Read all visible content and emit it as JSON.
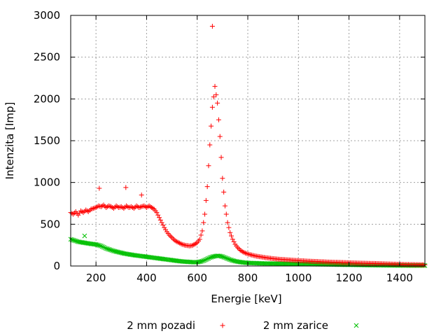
{
  "chart_data": {
    "type": "scatter",
    "title": "",
    "xlabel": "Energie [keV]",
    "ylabel": "Intenzita [Imp]",
    "xlim": [
      100,
      1500
    ],
    "ylim": [
      0,
      3000
    ],
    "xticks": [
      200,
      400,
      600,
      800,
      1000,
      1200,
      1400
    ],
    "yticks": [
      0,
      500,
      1000,
      1500,
      2000,
      2500,
      3000
    ],
    "grid": true,
    "legend_position": "bottom",
    "series": [
      {
        "name": "2 mm pozadi",
        "marker": "plus",
        "color": "#ff0000",
        "x": [
          100,
          110,
          120,
          130,
          140,
          150,
          160,
          170,
          180,
          190,
          200,
          210,
          220,
          230,
          240,
          250,
          260,
          270,
          280,
          290,
          300,
          310,
          320,
          330,
          340,
          350,
          360,
          370,
          380,
          390,
          400,
          410,
          420,
          430,
          440,
          450,
          460,
          470,
          480,
          490,
          500,
          510,
          520,
          530,
          540,
          550,
          560,
          570,
          580,
          590,
          600,
          610,
          620,
          630,
          640,
          650,
          660,
          670,
          680,
          690,
          700,
          710,
          720,
          730,
          740,
          750,
          760,
          770,
          780,
          790,
          800,
          810,
          820,
          830,
          840,
          850,
          860,
          870,
          880,
          890,
          900,
          910,
          920,
          930,
          940,
          950,
          960,
          970,
          980,
          990,
          1000,
          1010,
          1020,
          1030,
          1040,
          1050,
          1060,
          1070,
          1080,
          1090,
          1100,
          1110,
          1120,
          1130,
          1140,
          1150,
          1160,
          1170,
          1180,
          1190,
          1200,
          1210,
          1220,
          1230,
          1240,
          1250,
          1260,
          1270,
          1280,
          1290,
          1300,
          1310,
          1320,
          1330,
          1340,
          1350,
          1360,
          1370,
          1380,
          1390,
          1400,
          1410,
          1420,
          1430,
          1440,
          1450,
          1460,
          1470,
          1480,
          1490,
          1500,
          660,
          213,
          318,
          380
        ],
        "y": [
          640,
          620,
          650,
          610,
          660,
          640,
          670,
          650,
          680,
          690,
          700,
          720,
          710,
          730,
          700,
          720,
          710,
          690,
          720,
          700,
          710,
          690,
          720,
          700,
          710,
          690,
          720,
          700,
          710,
          720,
          700,
          720,
          700,
          680,
          640,
          580,
          520,
          460,
          410,
          370,
          340,
          310,
          290,
          275,
          260,
          250,
          245,
          240,
          245,
          260,
          280,
          320,
          420,
          620,
          950,
          1450,
          1900,
          2150,
          1950,
          1550,
          1050,
          720,
          520,
          400,
          320,
          260,
          220,
          190,
          170,
          155,
          145,
          135,
          128,
          120,
          115,
          110,
          105,
          100,
          96,
          92,
          88,
          85,
          82,
          80,
          78,
          75,
          73,
          71,
          69,
          67,
          65,
          63,
          62,
          60,
          58,
          57,
          55,
          54,
          52,
          51,
          50,
          48,
          47,
          46,
          45,
          44,
          43,
          42,
          41,
          40,
          39,
          38,
          37,
          36,
          35,
          34,
          33,
          32,
          31,
          30,
          30,
          29,
          28,
          27,
          26,
          25,
          24,
          23,
          22,
          21,
          20,
          19,
          18,
          18,
          17,
          17,
          16,
          16,
          15,
          15,
          15,
          2870,
          930,
          940,
          850
        ]
      },
      {
        "name": "2 mm zarice",
        "marker": "cross",
        "color": "#00c000",
        "x": [
          100,
          110,
          120,
          130,
          140,
          150,
          160,
          170,
          180,
          190,
          200,
          210,
          220,
          230,
          240,
          250,
          260,
          270,
          280,
          290,
          300,
          310,
          320,
          330,
          340,
          350,
          360,
          370,
          380,
          390,
          400,
          410,
          420,
          430,
          440,
          450,
          460,
          470,
          480,
          490,
          500,
          510,
          520,
          530,
          540,
          550,
          560,
          570,
          580,
          590,
          600,
          610,
          620,
          630,
          640,
          650,
          660,
          670,
          680,
          690,
          700,
          710,
          720,
          730,
          740,
          750,
          760,
          770,
          780,
          790,
          800,
          810,
          820,
          830,
          840,
          850,
          860,
          870,
          880,
          890,
          900,
          910,
          920,
          930,
          940,
          950,
          960,
          970,
          980,
          990,
          1000,
          1010,
          1020,
          1030,
          1040,
          1050,
          1060,
          1070,
          1080,
          1090,
          1100,
          1110,
          1120,
          1130,
          1140,
          1150,
          1160,
          1170,
          1180,
          1190,
          1200,
          1210,
          1220,
          1230,
          1240,
          1250,
          1260,
          1270,
          1280,
          1290,
          1300,
          1310,
          1320,
          1330,
          1340,
          1350,
          1360,
          1370,
          1380,
          1390,
          1400,
          1410,
          1420,
          1430,
          1440,
          1450,
          1460,
          1470,
          1480,
          1490,
          1500,
          155
        ],
        "y": [
          320,
          310,
          300,
          290,
          285,
          280,
          275,
          270,
          265,
          262,
          258,
          250,
          240,
          225,
          210,
          200,
          190,
          180,
          172,
          165,
          158,
          150,
          145,
          140,
          135,
          130,
          126,
          122,
          118,
          114,
          110,
          106,
          102,
          98,
          94,
          90,
          86,
          82,
          78,
          74,
          70,
          66,
          62,
          58,
          55,
          52,
          50,
          48,
          46,
          45,
          46,
          50,
          58,
          70,
          85,
          100,
          110,
          118,
          122,
          120,
          112,
          100,
          88,
          76,
          66,
          58,
          52,
          47,
          43,
          40,
          38,
          36,
          35,
          34,
          33,
          32,
          31,
          30,
          30,
          29,
          29,
          28,
          28,
          27,
          27,
          26,
          26,
          25,
          25,
          25,
          24,
          24,
          23,
          23,
          22,
          22,
          21,
          21,
          20,
          20,
          19,
          19,
          18,
          18,
          17,
          17,
          16,
          16,
          15,
          15,
          14,
          14,
          13,
          13,
          12,
          12,
          11,
          11,
          10,
          10,
          10,
          9,
          9,
          9,
          8,
          8,
          8,
          7,
          7,
          7,
          6,
          6,
          6,
          6,
          5,
          5,
          5,
          5,
          5,
          5,
          5,
          360
        ]
      }
    ]
  }
}
